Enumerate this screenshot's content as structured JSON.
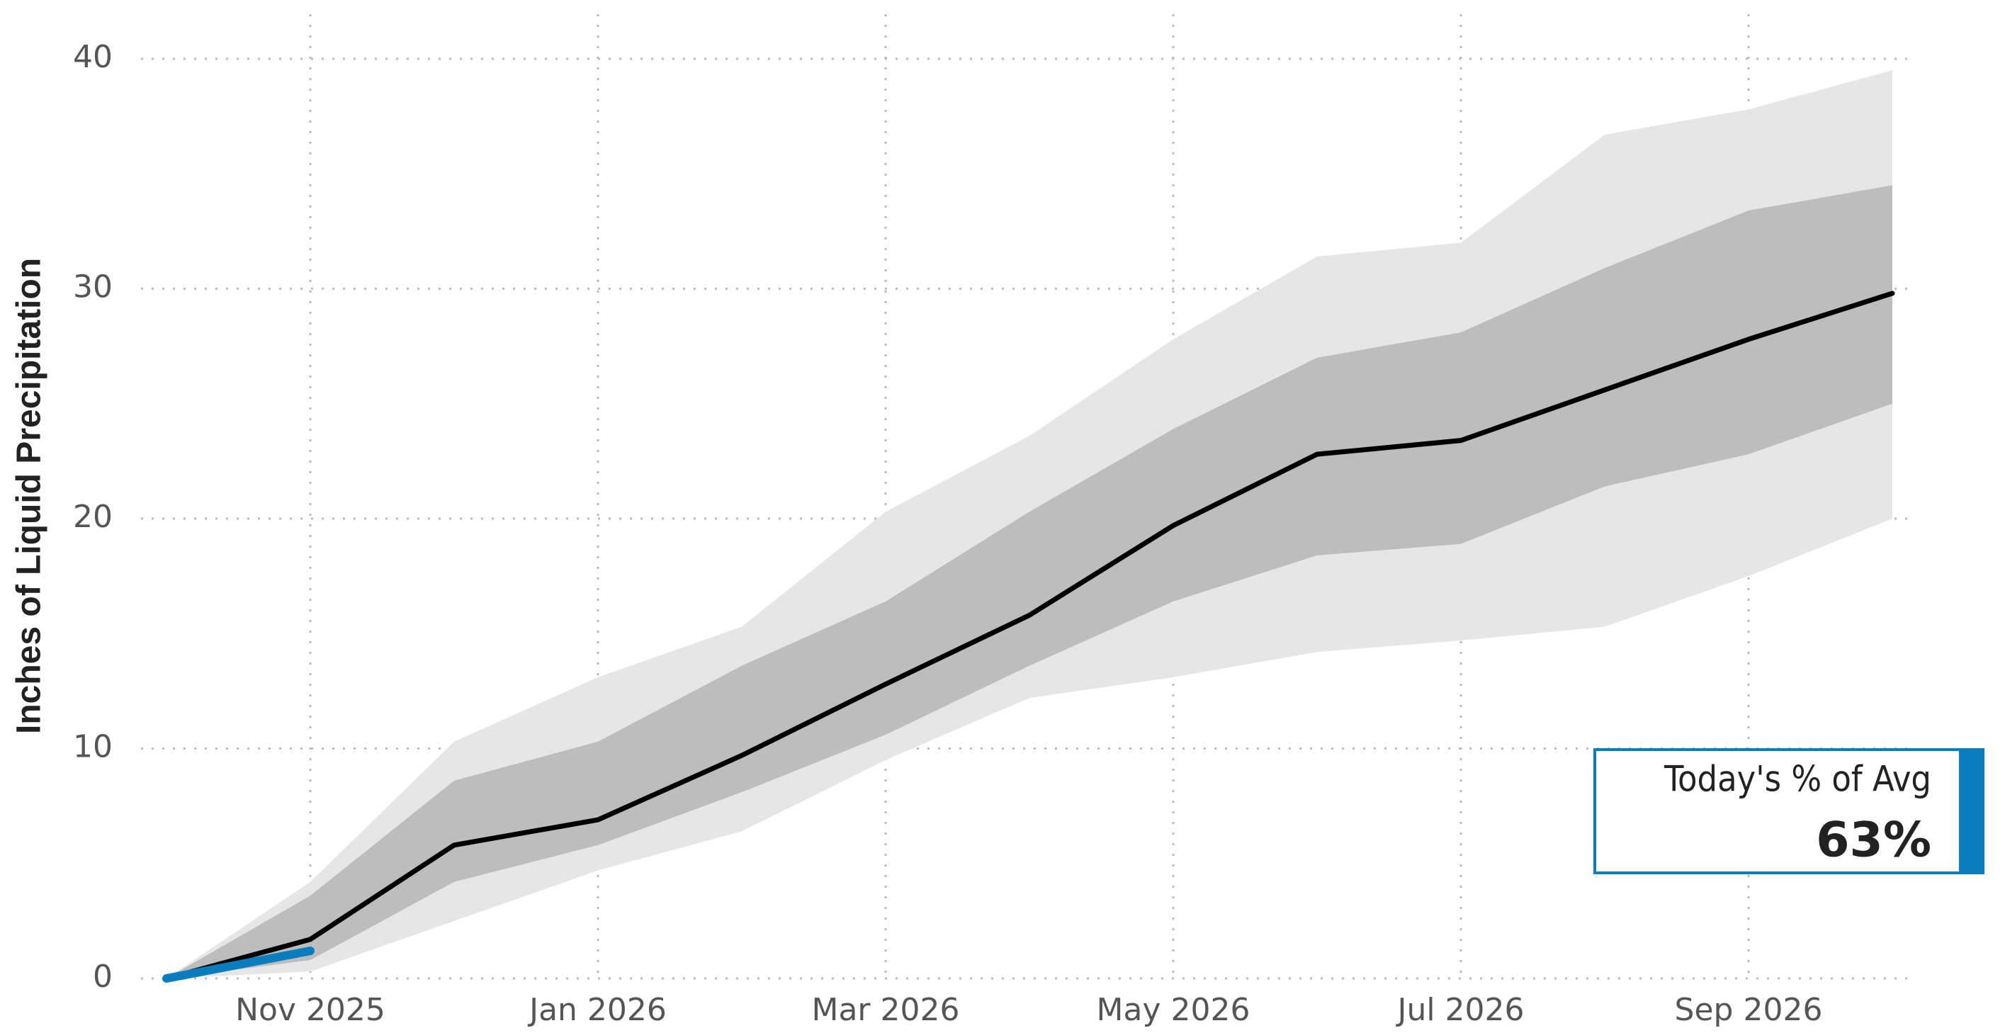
{
  "chart_data": {
    "type": "band-line",
    "y_label": "Inches of Liquid Precipitation",
    "x": [
      "2025-10",
      "2025-11",
      "2025-12",
      "2026-01",
      "2026-02",
      "2026-03",
      "2026-04",
      "2026-05",
      "2026-06",
      "2026-07",
      "2026-08",
      "2026-09",
      "2026-10"
    ],
    "bands": [
      {
        "color": "#e6e6e6",
        "lower": [
          0,
          0.3,
          2.5,
          4.7,
          6.4,
          9.5,
          12.2,
          13.1,
          14.2,
          14.7,
          15.3,
          17.5,
          20.0
        ],
        "upper": [
          0,
          4.2,
          10.3,
          13.1,
          15.3,
          20.3,
          23.6,
          27.8,
          31.4,
          32.0,
          36.7,
          37.8,
          39.5
        ]
      },
      {
        "color": "#bdbdbd",
        "lower": [
          0,
          0.8,
          4.2,
          5.8,
          8.1,
          10.6,
          13.6,
          16.4,
          18.4,
          18.9,
          21.4,
          22.8,
          25.0
        ],
        "upper": [
          0,
          3.6,
          8.6,
          10.3,
          13.6,
          16.4,
          20.3,
          23.9,
          27.0,
          28.1,
          30.9,
          33.4,
          34.5
        ]
      }
    ],
    "lines": [
      {
        "color": "#000000",
        "values": [
          0,
          1.7,
          5.8,
          6.9,
          9.7,
          12.8,
          15.8,
          19.7,
          22.8,
          23.4,
          25.6,
          27.8,
          29.8
        ]
      },
      {
        "color": "#0a7dbf",
        "values": [
          0,
          1.2,
          null,
          null,
          null,
          null,
          null,
          null,
          null,
          null,
          null,
          null,
          null
        ]
      }
    ],
    "xlim": [
      "2025-10",
      "2026-10"
    ],
    "xticks": [
      {
        "value": "2025-11",
        "label": "Nov 2025"
      },
      {
        "value": "2026-01",
        "label": "Jan 2026"
      },
      {
        "value": "2026-03",
        "label": "Mar 2026"
      },
      {
        "value": "2026-05",
        "label": "May 2026"
      },
      {
        "value": "2026-07",
        "label": "Jul 2026"
      },
      {
        "value": "2026-09",
        "label": "Sep 2026"
      }
    ],
    "ylim": [
      0,
      40
    ],
    "yticks": [
      0,
      10,
      20,
      30,
      40
    ],
    "grid": true,
    "callout": {
      "title": "Today's % of Avg",
      "value": 63,
      "value_label": "63%",
      "color": "#0a7dbf"
    }
  }
}
